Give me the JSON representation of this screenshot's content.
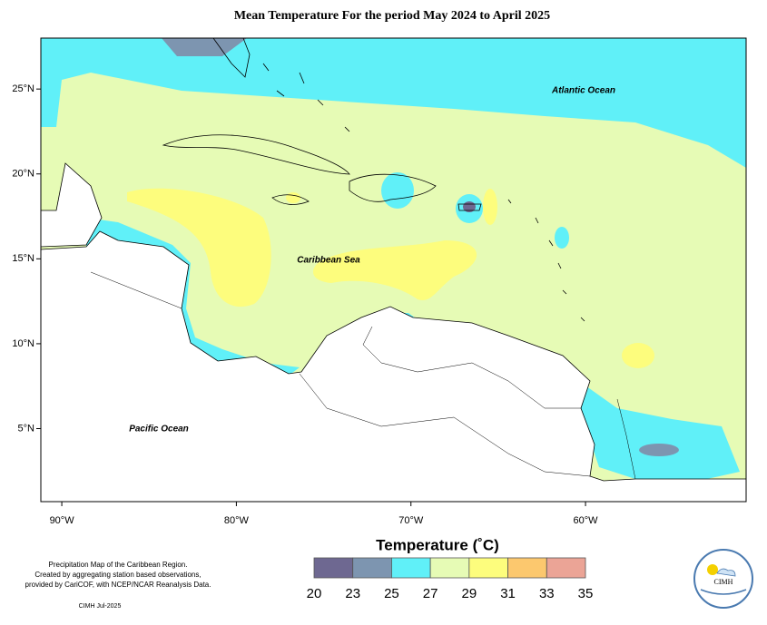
{
  "title": "Mean Temperature For the period May 2024 to April 2025",
  "map": {
    "xlim": [
      -91.2,
      -50.8
    ],
    "ylim": [
      0.7,
      28.0
    ],
    "xticks": [
      {
        "value": -90,
        "label": "90°W"
      },
      {
        "value": -80,
        "label": "80°W"
      },
      {
        "value": -70,
        "label": "70°W"
      },
      {
        "value": -60,
        "label": "60°W"
      }
    ],
    "yticks": [
      {
        "value": 5,
        "label": "5°N"
      },
      {
        "value": 10,
        "label": "10°N"
      },
      {
        "value": 15,
        "label": "15°N"
      },
      {
        "value": 20,
        "label": "20°N"
      },
      {
        "value": 25,
        "label": "25°N"
      }
    ]
  },
  "places": {
    "atlantic": "Atlantic Ocean",
    "caribbean": "Caribbean Sea",
    "pacific": "Pacific Ocean"
  },
  "legend": {
    "title": "Temperature (˚C)",
    "ticks": [
      20,
      23,
      25,
      27,
      29,
      31,
      33,
      35
    ],
    "colors": [
      "#6e6891",
      "#7d95b0",
      "#60f0f8",
      "#e6fbb5",
      "#fdfd7d",
      "#fcc86e",
      "#eba496"
    ]
  },
  "notes": [
    "Precipitation Map of the Caribbean Region.",
    "Created by aggregating station based observations,",
    "provided by CariCOF, with NCEP/NCAR Reanalysis Data."
  ],
  "credit": "CIMH Jul-2025",
  "logo": "CIMH"
}
